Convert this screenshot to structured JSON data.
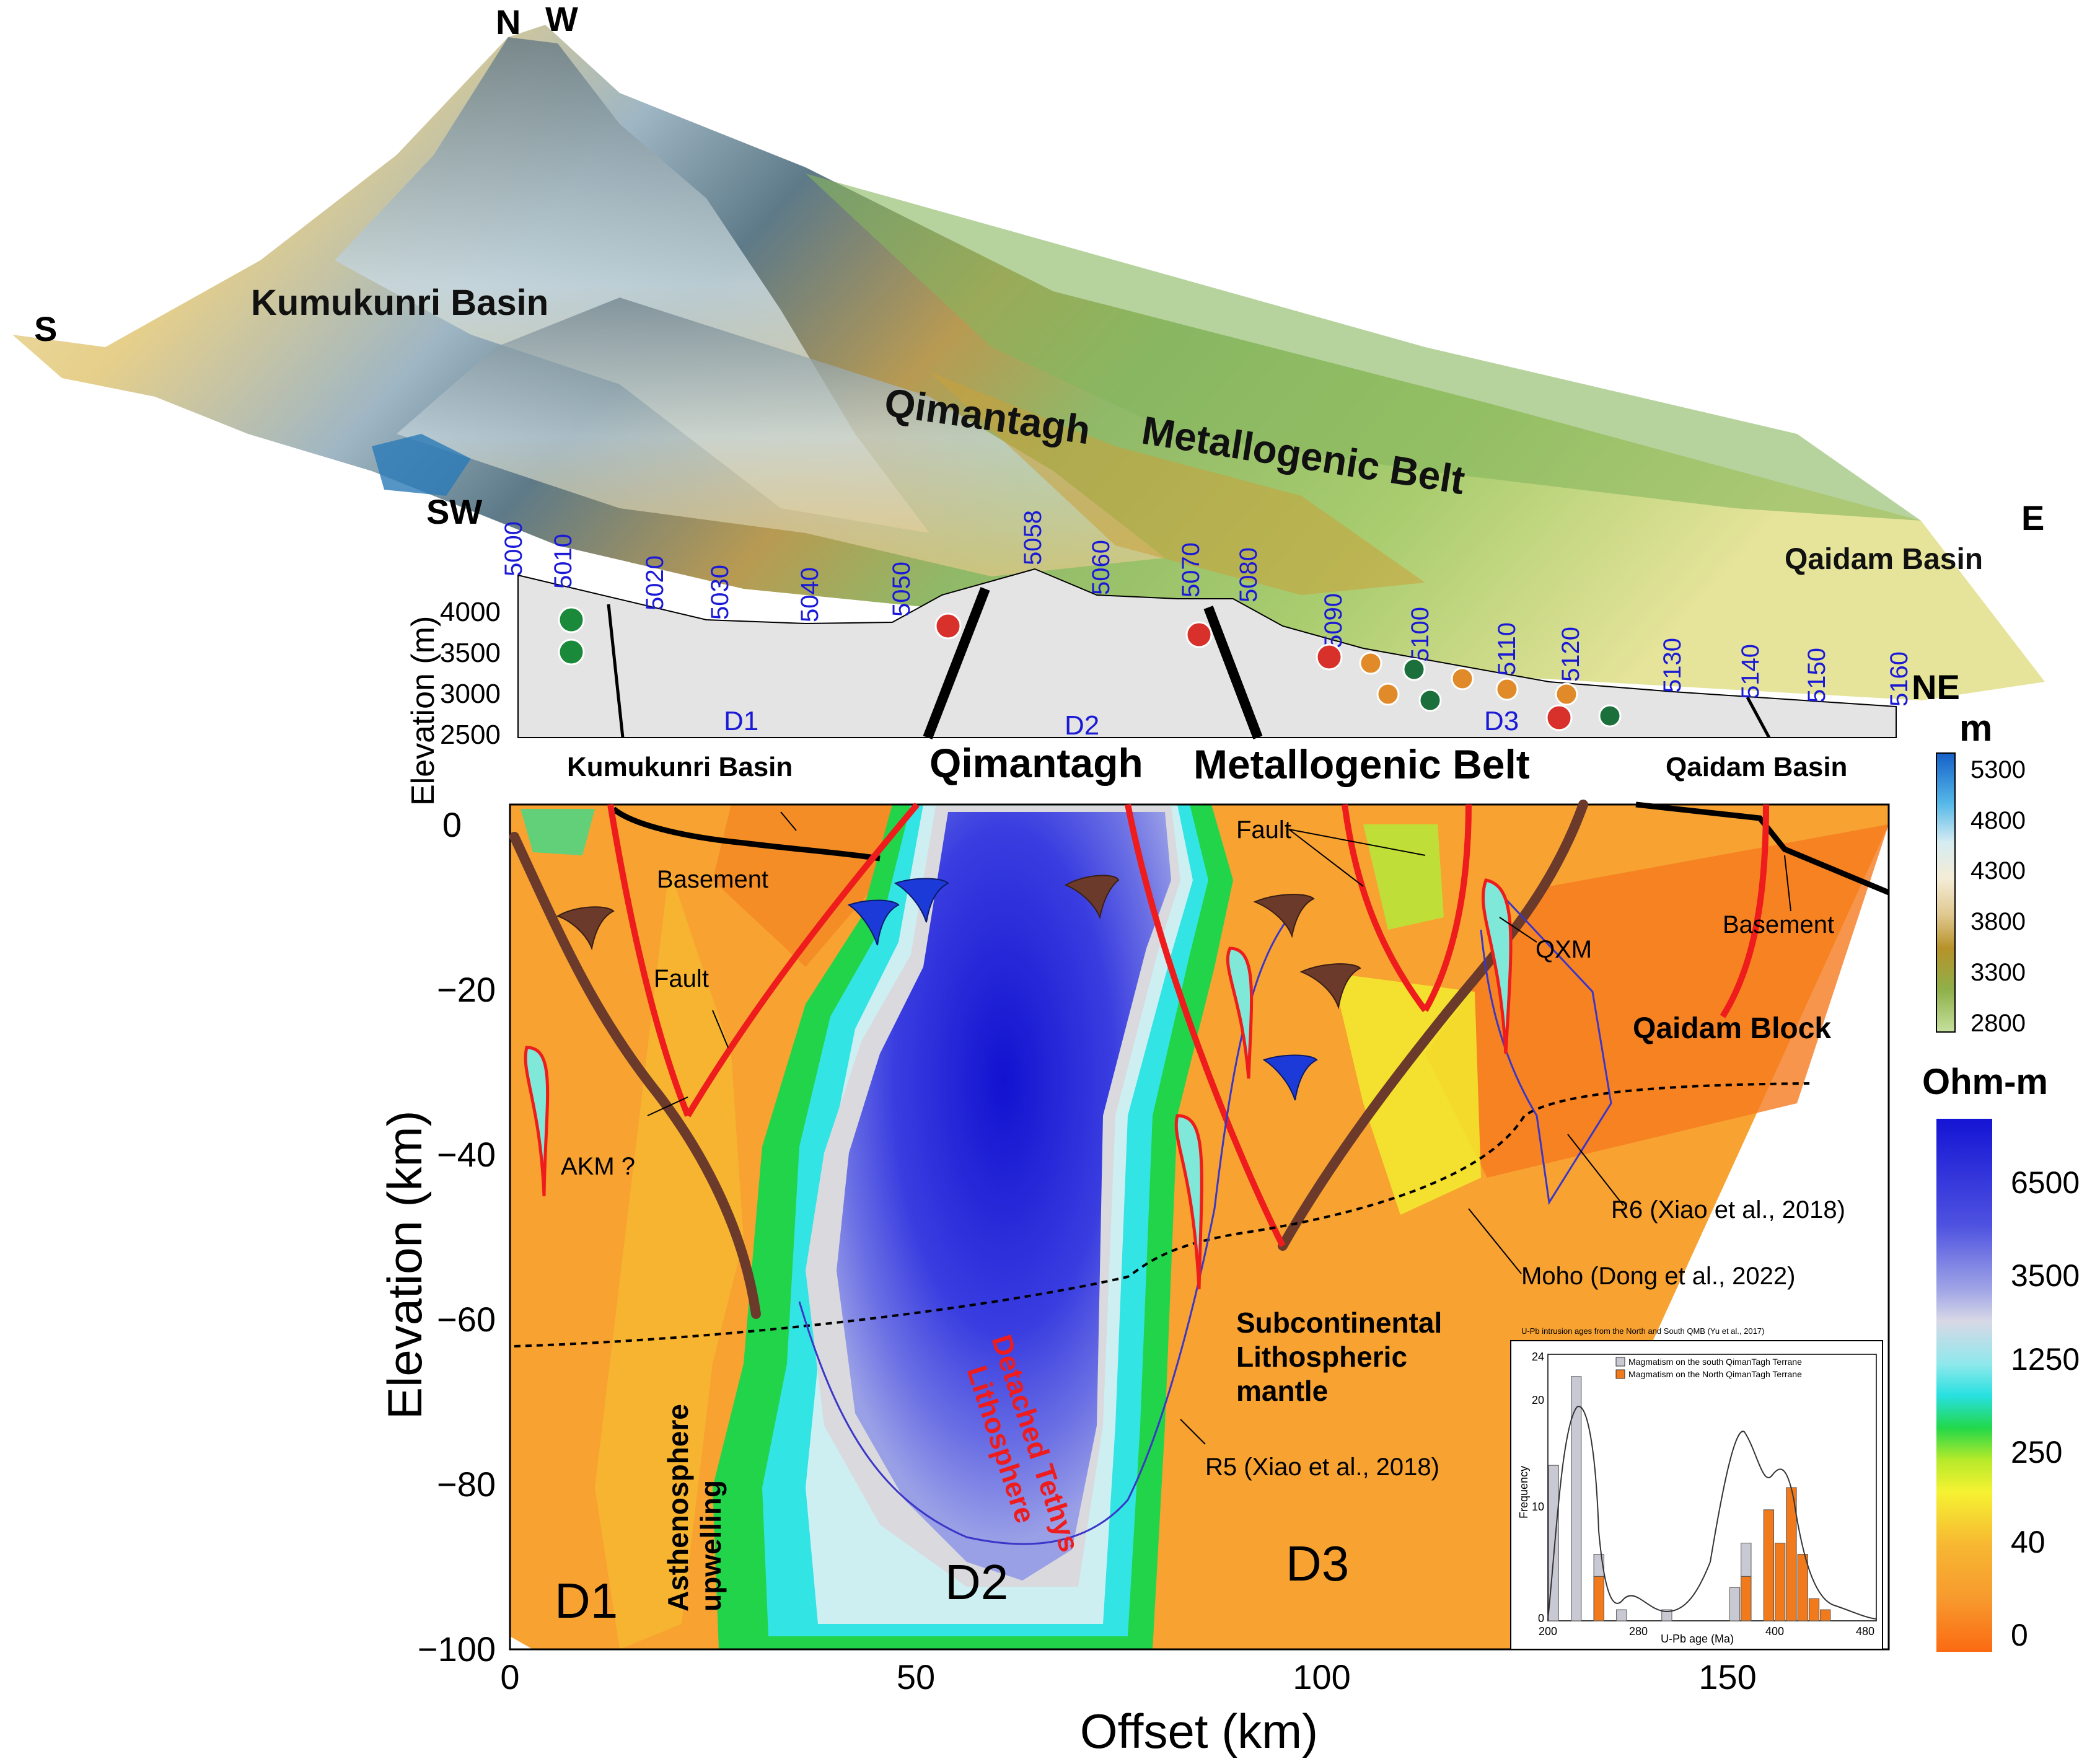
{
  "terrain": {
    "compass": {
      "n": "N",
      "w": "W",
      "s": "S",
      "sw": "SW",
      "e": "E",
      "ne": "NE"
    },
    "labels": {
      "kumukunri": "Kumukunri Basin",
      "qimantagh": "Qimantagh",
      "metallogenic": "Metallogenic Belt",
      "qaidam": "Qaidam Basin"
    }
  },
  "elevation_legend": {
    "unit": "m",
    "ticks": [
      "5300",
      "4800",
      "4300",
      "3800",
      "3300",
      "2800"
    ],
    "colors": [
      "#1560c8",
      "#55b8e8",
      "#d6ecf2",
      "#f4ecd6",
      "#e0c990",
      "#b7922a",
      "#8fb04a",
      "#c6e19d"
    ]
  },
  "profile": {
    "ylabel": "Elevation (m)",
    "yticks": [
      "4000",
      "3500",
      "3000",
      "2500"
    ],
    "stations": [
      "5000",
      "5010",
      "5020",
      "5030",
      "5040",
      "5050",
      "5058",
      "5060",
      "5070",
      "5080",
      "5090",
      "5100",
      "5110",
      "5120",
      "5130",
      "5140",
      "5150",
      "5160"
    ],
    "domains": [
      "D1",
      "D2",
      "D3"
    ],
    "titles": {
      "kumukunri": "Kumukunri Basin",
      "qimantagh": "Qimantagh",
      "belt": "Metallogenic Belt",
      "qaidam": "Qaidam Basin"
    }
  },
  "section": {
    "xlabel": "Offset (km)",
    "ylabel": "Elevation (km)",
    "xticks": [
      "0",
      "50",
      "100",
      "150"
    ],
    "yticks": [
      "0",
      "−20",
      "−40",
      "−60",
      "−80",
      "−100"
    ],
    "annotations": {
      "basement_left": "Basement",
      "basement_right": "Basement",
      "fault_left": "Fault",
      "fault_top": "Fault",
      "akm": "AKM ?",
      "qxm": "QXM",
      "qaidam_block": "Qaidam Block",
      "r6": "R6 (Xiao et al., 2018)",
      "moho": "Moho (Dong et al., 2022)",
      "r5": "R5 (Xiao et al., 2018)",
      "subcontinental_1": "Subcontinental",
      "subcontinental_2": "Lithospheric",
      "subcontinental_3": "mantle",
      "asth_1": "Asthenosphere",
      "asth_2": "upwelling",
      "detached_1": "Detached Tethys",
      "detached_2": "Lithosphere",
      "d1": "D1",
      "d2": "D2",
      "d3": "D3"
    }
  },
  "resistivity_legend": {
    "unit": "Ohm-m",
    "ticks": [
      "6500",
      "3500",
      "1250",
      "250",
      "40",
      "0"
    ]
  },
  "inset": {
    "title": "U-Pb intrusion ages from the North and South QMB (Yu et al., 2017)",
    "legend_south": "Magmatism on the south QimanTagh Terrane",
    "legend_north": "Magmatism on the North QimanTagh Terrane",
    "xlabel": "U-Pb age (Ma)",
    "ylabel": "Frequency",
    "xticks": [
      "200",
      "280",
      "400",
      "480"
    ],
    "yticks": [
      "24",
      "20",
      "10",
      "0"
    ]
  },
  "chart_data": {
    "type": "bar",
    "xlabel": "U-Pb age (Ma)",
    "ylabel": "Frequency",
    "xlim": [
      200,
      490
    ],
    "ylim": [
      0,
      24
    ],
    "bin_starts": [
      200,
      210,
      220,
      230,
      240,
      250,
      260,
      270,
      280,
      290,
      300,
      310,
      320,
      330,
      340,
      350,
      360,
      370,
      380,
      390,
      400,
      410,
      420,
      430,
      440,
      450,
      460,
      470,
      480
    ],
    "series": [
      {
        "name": "Magmatism on the south QimanTagh Terrane",
        "color": "#c9c9d4",
        "values": [
          14,
          0,
          22,
          0,
          6,
          0,
          1,
          0,
          0,
          0,
          1,
          0,
          0,
          0,
          0,
          0,
          3,
          7,
          0,
          0,
          0,
          0,
          0,
          0,
          0,
          0,
          0,
          0,
          0
        ]
      },
      {
        "name": "Magmatism on the North QimanTagh Terrane",
        "color": "#f07a1c",
        "values": [
          0,
          0,
          0,
          0,
          4,
          0,
          0,
          0,
          0,
          0,
          0,
          0,
          0,
          0,
          0,
          0,
          0,
          4,
          0,
          10,
          7,
          12,
          6,
          2,
          1,
          0,
          0,
          0,
          0
        ]
      }
    ]
  }
}
